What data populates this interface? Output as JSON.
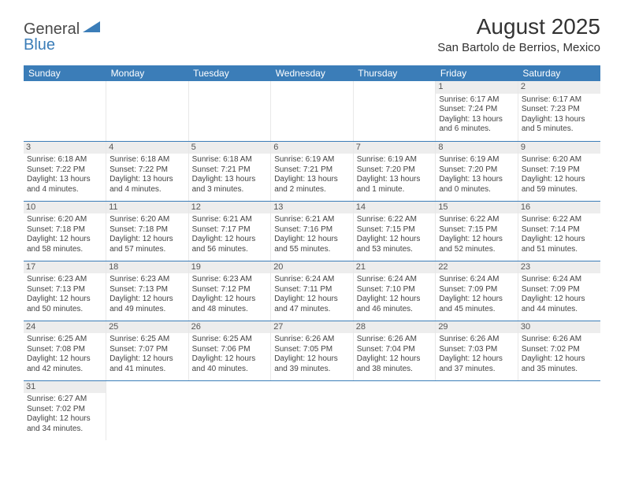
{
  "logo": {
    "text1": "General",
    "text2": "Blue"
  },
  "colors": {
    "header_bg": "#3b7db8",
    "header_text": "#ffffff",
    "logo_gray": "#4a4a4a",
    "logo_blue": "#3b7db8",
    "cell_border_h": "#3b7db8",
    "cell_border_v": "#e8e8e8",
    "daynum_bg": "#ededed",
    "body_text": "#444",
    "title_text": "#333",
    "background": "#ffffff"
  },
  "fonts": {
    "month_title_size": 28,
    "location_size": 15,
    "day_header_size": 12,
    "daynum_size": 11,
    "cell_size": 10,
    "logo_size": 20
  },
  "title": "August 2025",
  "location": "San Bartolo de Berrios, Mexico",
  "day_headers": [
    "Sunday",
    "Monday",
    "Tuesday",
    "Wednesday",
    "Thursday",
    "Friday",
    "Saturday"
  ],
  "first_day_index": 5,
  "last_day": 31,
  "days": {
    "1": {
      "sunrise": "6:17 AM",
      "sunset": "7:24 PM",
      "daylight": "13 hours and 6 minutes."
    },
    "2": {
      "sunrise": "6:17 AM",
      "sunset": "7:23 PM",
      "daylight": "13 hours and 5 minutes."
    },
    "3": {
      "sunrise": "6:18 AM",
      "sunset": "7:22 PM",
      "daylight": "13 hours and 4 minutes."
    },
    "4": {
      "sunrise": "6:18 AM",
      "sunset": "7:22 PM",
      "daylight": "13 hours and 4 minutes."
    },
    "5": {
      "sunrise": "6:18 AM",
      "sunset": "7:21 PM",
      "daylight": "13 hours and 3 minutes."
    },
    "6": {
      "sunrise": "6:19 AM",
      "sunset": "7:21 PM",
      "daylight": "13 hours and 2 minutes."
    },
    "7": {
      "sunrise": "6:19 AM",
      "sunset": "7:20 PM",
      "daylight": "13 hours and 1 minute."
    },
    "8": {
      "sunrise": "6:19 AM",
      "sunset": "7:20 PM",
      "daylight": "13 hours and 0 minutes."
    },
    "9": {
      "sunrise": "6:20 AM",
      "sunset": "7:19 PM",
      "daylight": "12 hours and 59 minutes."
    },
    "10": {
      "sunrise": "6:20 AM",
      "sunset": "7:18 PM",
      "daylight": "12 hours and 58 minutes."
    },
    "11": {
      "sunrise": "6:20 AM",
      "sunset": "7:18 PM",
      "daylight": "12 hours and 57 minutes."
    },
    "12": {
      "sunrise": "6:21 AM",
      "sunset": "7:17 PM",
      "daylight": "12 hours and 56 minutes."
    },
    "13": {
      "sunrise": "6:21 AM",
      "sunset": "7:16 PM",
      "daylight": "12 hours and 55 minutes."
    },
    "14": {
      "sunrise": "6:22 AM",
      "sunset": "7:15 PM",
      "daylight": "12 hours and 53 minutes."
    },
    "15": {
      "sunrise": "6:22 AM",
      "sunset": "7:15 PM",
      "daylight": "12 hours and 52 minutes."
    },
    "16": {
      "sunrise": "6:22 AM",
      "sunset": "7:14 PM",
      "daylight": "12 hours and 51 minutes."
    },
    "17": {
      "sunrise": "6:23 AM",
      "sunset": "7:13 PM",
      "daylight": "12 hours and 50 minutes."
    },
    "18": {
      "sunrise": "6:23 AM",
      "sunset": "7:13 PM",
      "daylight": "12 hours and 49 minutes."
    },
    "19": {
      "sunrise": "6:23 AM",
      "sunset": "7:12 PM",
      "daylight": "12 hours and 48 minutes."
    },
    "20": {
      "sunrise": "6:24 AM",
      "sunset": "7:11 PM",
      "daylight": "12 hours and 47 minutes."
    },
    "21": {
      "sunrise": "6:24 AM",
      "sunset": "7:10 PM",
      "daylight": "12 hours and 46 minutes."
    },
    "22": {
      "sunrise": "6:24 AM",
      "sunset": "7:09 PM",
      "daylight": "12 hours and 45 minutes."
    },
    "23": {
      "sunrise": "6:24 AM",
      "sunset": "7:09 PM",
      "daylight": "12 hours and 44 minutes."
    },
    "24": {
      "sunrise": "6:25 AM",
      "sunset": "7:08 PM",
      "daylight": "12 hours and 42 minutes."
    },
    "25": {
      "sunrise": "6:25 AM",
      "sunset": "7:07 PM",
      "daylight": "12 hours and 41 minutes."
    },
    "26": {
      "sunrise": "6:25 AM",
      "sunset": "7:06 PM",
      "daylight": "12 hours and 40 minutes."
    },
    "27": {
      "sunrise": "6:26 AM",
      "sunset": "7:05 PM",
      "daylight": "12 hours and 39 minutes."
    },
    "28": {
      "sunrise": "6:26 AM",
      "sunset": "7:04 PM",
      "daylight": "12 hours and 38 minutes."
    },
    "29": {
      "sunrise": "6:26 AM",
      "sunset": "7:03 PM",
      "daylight": "12 hours and 37 minutes."
    },
    "30": {
      "sunrise": "6:26 AM",
      "sunset": "7:02 PM",
      "daylight": "12 hours and 35 minutes."
    },
    "31": {
      "sunrise": "6:27 AM",
      "sunset": "7:02 PM",
      "daylight": "12 hours and 34 minutes."
    }
  }
}
